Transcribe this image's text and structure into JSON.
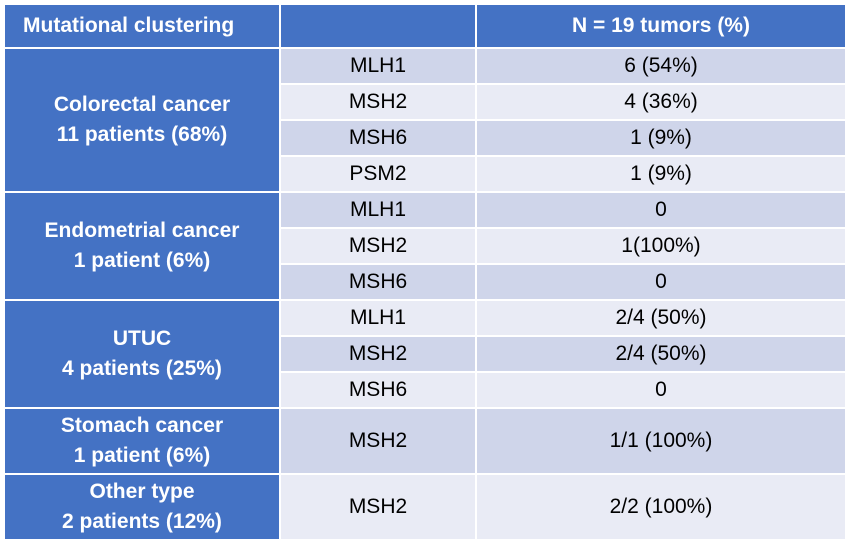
{
  "header": {
    "col1": "Mutational clustering",
    "col2": "",
    "col3": "N = 19 tumors (%)"
  },
  "groups": [
    {
      "name": "Colorectal cancer",
      "count": "11 patients (68%)",
      "rows": [
        {
          "gene": "MLH1",
          "value": "6 (54%)"
        },
        {
          "gene": "MSH2",
          "value": "4 (36%)"
        },
        {
          "gene": "MSH6",
          "value": "1 (9%)"
        },
        {
          "gene": "PSM2",
          "value": "1 (9%)"
        }
      ]
    },
    {
      "name": "Endometrial cancer",
      "count": "1 patient (6%)",
      "rows": [
        {
          "gene": "MLH1",
          "value": "0"
        },
        {
          "gene": "MSH2",
          "value": "1(100%)"
        },
        {
          "gene": "MSH6",
          "value": "0"
        }
      ]
    },
    {
      "name": "UTUC",
      "count": "4 patients (25%)",
      "rows": [
        {
          "gene": "MLH1",
          "value": "2/4 (50%)"
        },
        {
          "gene": "MSH2",
          "value": "2/4 (50%)"
        },
        {
          "gene": "MSH6",
          "value": "0"
        }
      ]
    },
    {
      "name": "Stomach cancer",
      "count": "1 patient (6%)",
      "rows": [
        {
          "gene": "MSH2",
          "value": "1/1 (100%)"
        }
      ]
    },
    {
      "name": "Other type",
      "count": "2 patients (12%)",
      "rows": [
        {
          "gene": "MSH2",
          "value": "2/2 (100%)"
        }
      ]
    }
  ]
}
